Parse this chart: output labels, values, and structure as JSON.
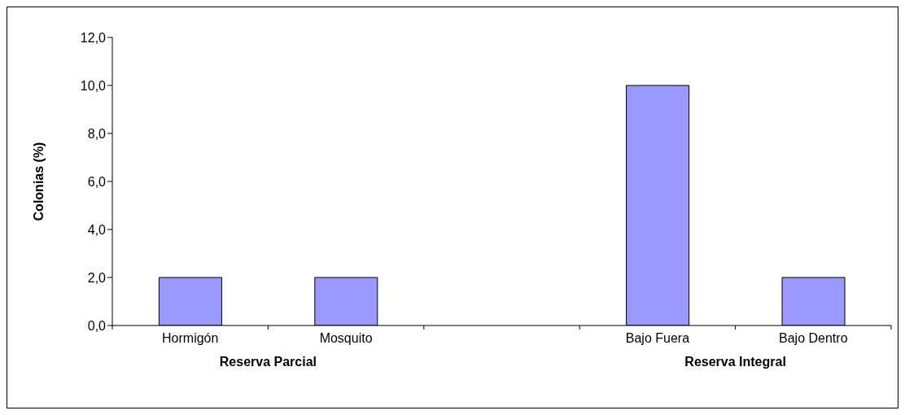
{
  "chart_data": {
    "type": "bar",
    "ylabel": "Colonias (%)",
    "categories": [
      "Hormigón",
      "Mosquito",
      null,
      "Bajo Fuera",
      "Bajo Dentro"
    ],
    "values": [
      2,
      2,
      null,
      10,
      2
    ],
    "color": "#9999ff",
    "ylim": [
      0,
      12
    ],
    "yticks": [
      {
        "value": 0,
        "label": "0,0"
      },
      {
        "value": 2,
        "label": "2,0"
      },
      {
        "value": 4,
        "label": "4,0"
      },
      {
        "value": 6,
        "label": "6,0"
      },
      {
        "value": 8,
        "label": "8,0"
      },
      {
        "value": 10,
        "label": "10,0"
      },
      {
        "value": 12,
        "label": "12,0"
      }
    ],
    "grid": false,
    "legend": false,
    "annotations": [
      "Reserva Parcial",
      "Reserva Integral"
    ]
  }
}
